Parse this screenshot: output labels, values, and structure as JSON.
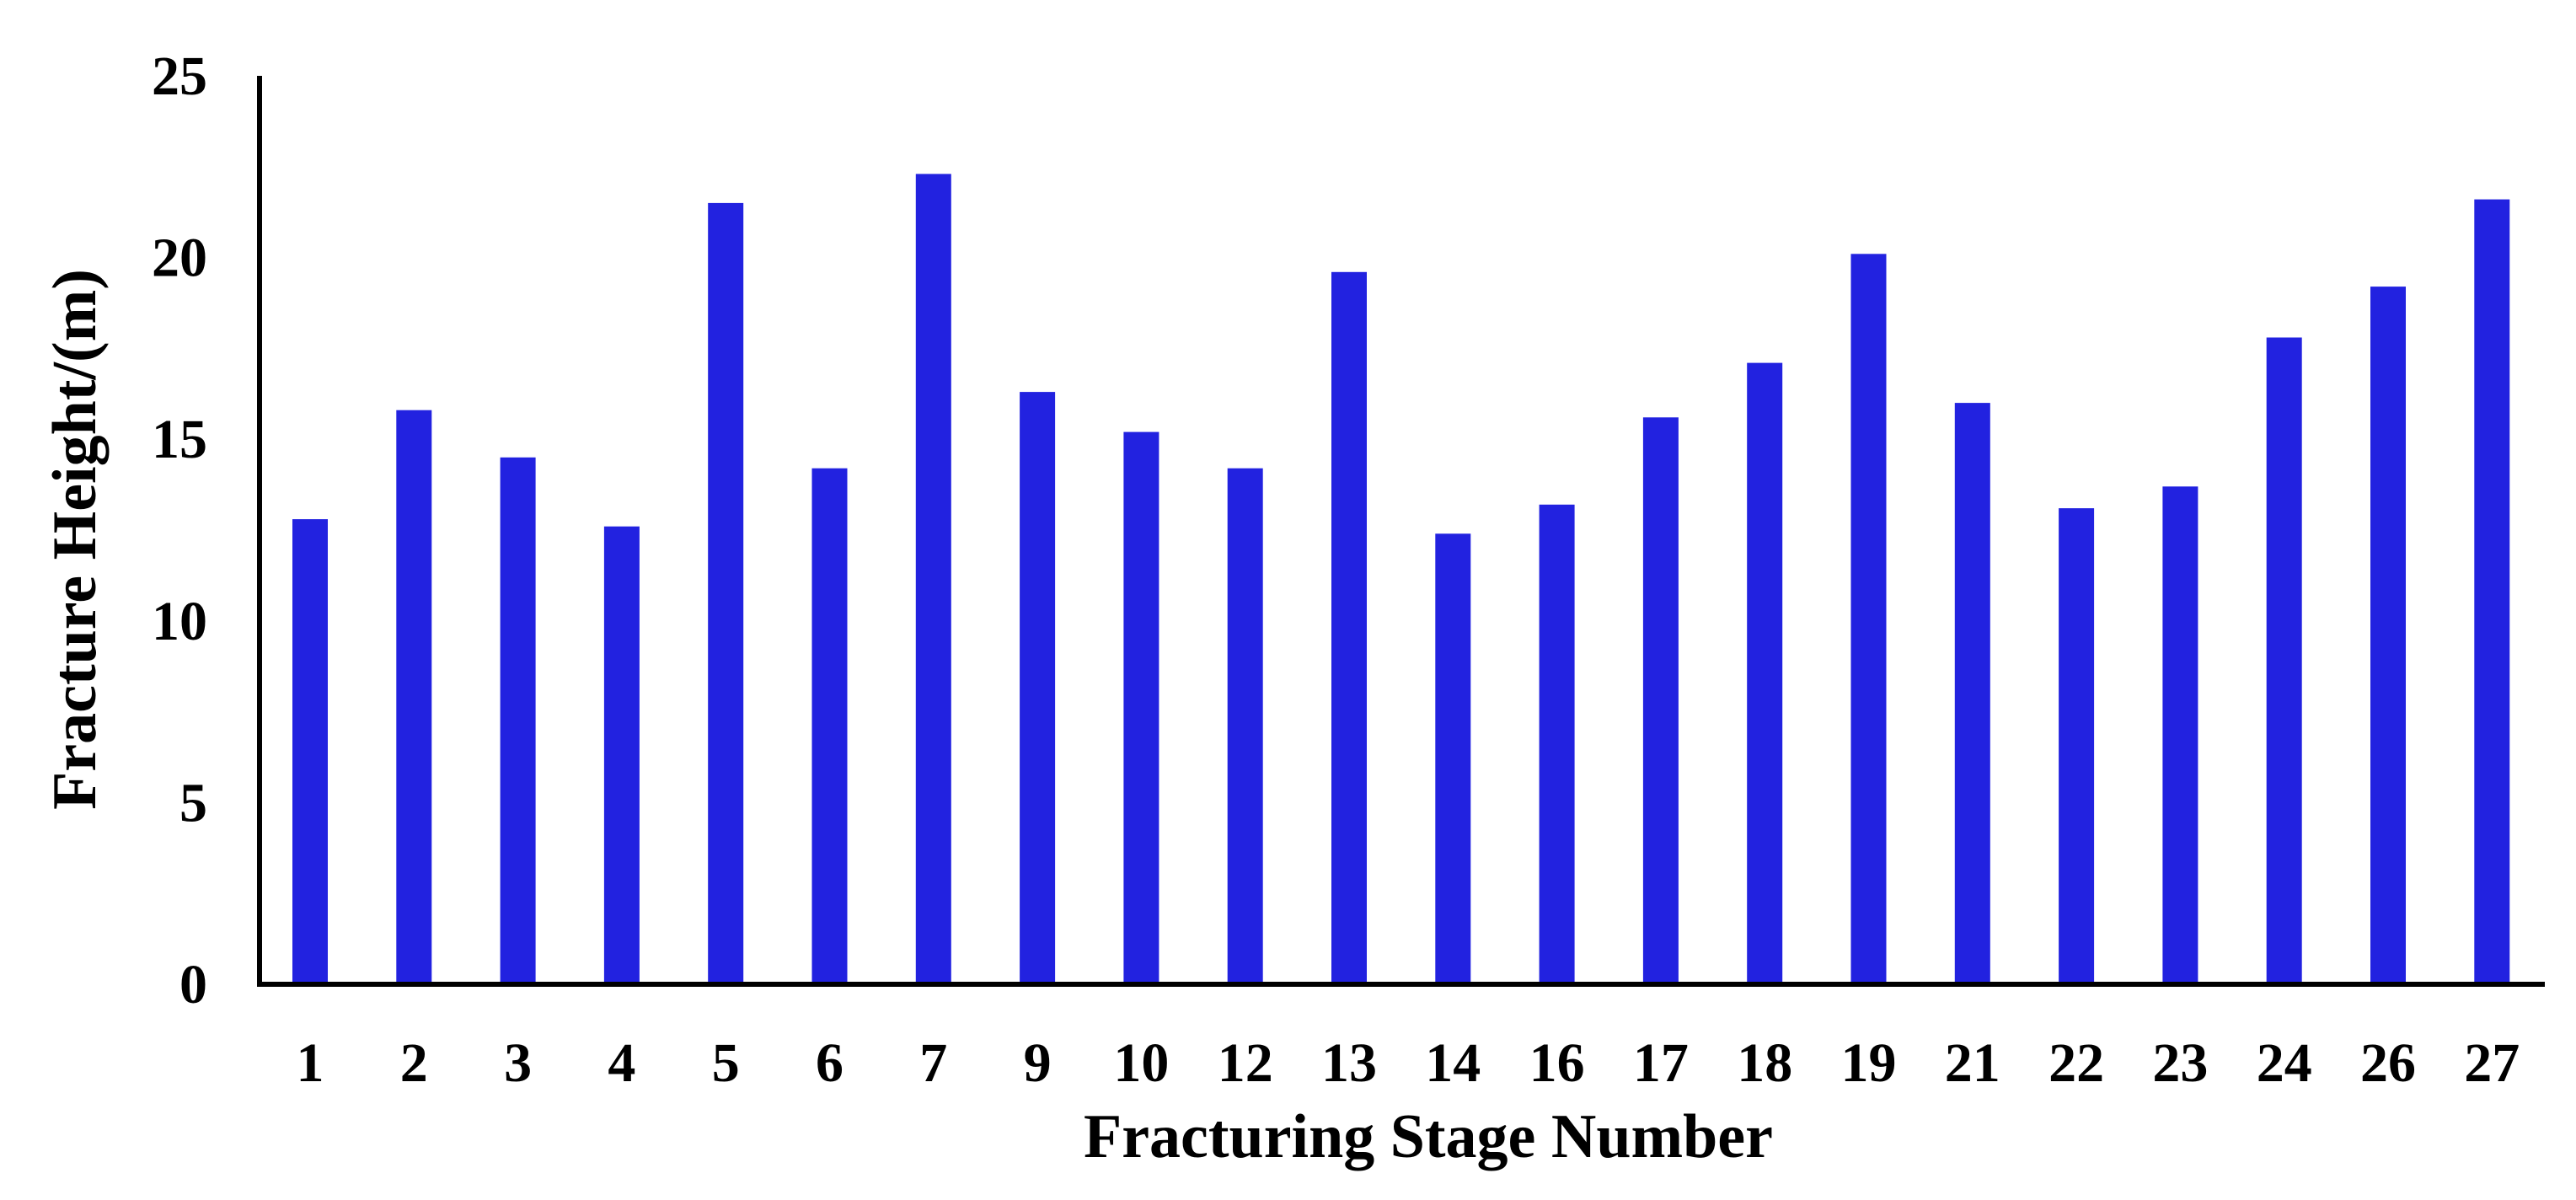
{
  "chart_data": {
    "type": "bar",
    "title": "",
    "xlabel": "Fracturing Stage Number",
    "ylabel": "Fracture Height/(m)",
    "categories": [
      "1",
      "2",
      "3",
      "4",
      "5",
      "6",
      "7",
      "9",
      "10",
      "12",
      "13",
      "14",
      "16",
      "17",
      "18",
      "19",
      "21",
      "22",
      "23",
      "24",
      "26",
      "27"
    ],
    "values": [
      12.8,
      15.8,
      14.5,
      12.6,
      21.5,
      14.2,
      22.3,
      16.3,
      15.2,
      14.2,
      19.6,
      12.4,
      13.2,
      15.6,
      17.1,
      20.1,
      16.0,
      13.1,
      13.7,
      17.8,
      19.2,
      21.6
    ],
    "ylim": [
      0,
      25
    ],
    "yticks": [
      "0",
      "5",
      "10",
      "15",
      "20",
      "25"
    ],
    "grid": false,
    "legend": "none",
    "bar_color": "#2222e0",
    "axis_color": "#000000"
  }
}
